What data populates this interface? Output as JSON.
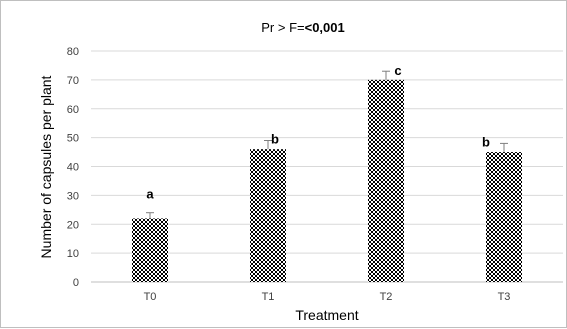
{
  "chart_data": {
    "type": "bar",
    "title_prefix": "Pr > F=",
    "title_value": "<0,001",
    "xlabel": "Treatment",
    "ylabel": "Number of capsules per plant",
    "categories": [
      "T0",
      "T1",
      "T2",
      "T3"
    ],
    "values": [
      22,
      46,
      70,
      45
    ],
    "error_upper": [
      24,
      49,
      73,
      48
    ],
    "letters": [
      "a",
      "b",
      "c",
      "b"
    ],
    "ylim": [
      0,
      80
    ],
    "yticks": [
      0,
      10,
      20,
      30,
      40,
      50,
      60,
      70,
      80
    ],
    "grid": true,
    "bar_pattern": "checkerboard",
    "bar_color": "#000000",
    "grid_color": "#d9d9d9",
    "axis_color": "#bfbfbf"
  }
}
